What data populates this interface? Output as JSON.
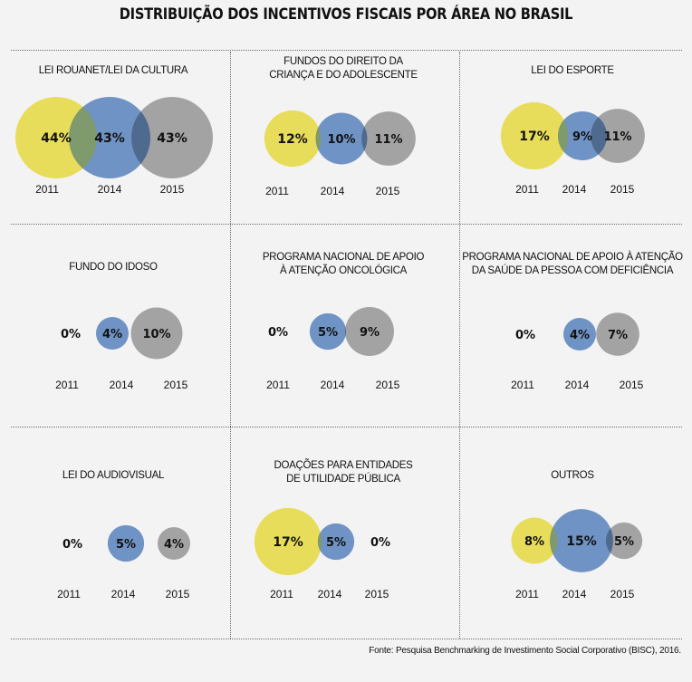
{
  "title": "DISTRIBUIÇÃO DOS INCENTIVOS FISCAIS POR ÁREA NO BRASIL",
  "source": "Fonte: Pesquisa Benchmarking de Investimento Social Corporativo (BISC), 2016.",
  "colors": {
    "2011": "#e8dd5a",
    "2014": "#6f93c4",
    "2015": "#a3a3a3",
    "overlap_yellow_blue": "#7f9a6c",
    "overlap_blue_gray": "#4e6a8e"
  },
  "years": [
    "2011",
    "2014",
    "2015"
  ],
  "chart_data": [
    {
      "type": "bubble",
      "title": "LEI ROUANET/LEI DA CULTURA",
      "labels": [
        "44%",
        "43%",
        "43%"
      ],
      "values": [
        44,
        43,
        43
      ]
    },
    {
      "type": "bubble",
      "title": "FUNDOS DO DIREITO DA\nCRIANÇA E DO ADOLESCENTE",
      "labels": [
        "12%",
        "10%",
        "11%"
      ],
      "values": [
        12,
        10,
        11
      ]
    },
    {
      "type": "bubble",
      "title": "LEI DO ESPORTE",
      "labels": [
        "17%",
        "9%",
        "11%"
      ],
      "values": [
        17,
        9,
        11
      ]
    },
    {
      "type": "bubble",
      "title": "FUNDO DO IDOSO",
      "labels": [
        "0%",
        "4%",
        "10%"
      ],
      "values": [
        0,
        4,
        10
      ]
    },
    {
      "type": "bubble",
      "title": "PROGRAMA NACIONAL DE APOIO\nÀ ATENÇÃO ONCOLÓGICA",
      "labels": [
        "0%",
        "5%",
        "9%"
      ],
      "values": [
        0,
        5,
        9
      ]
    },
    {
      "type": "bubble",
      "title": "PROGRAMA NACIONAL DE APOIO À ATENÇÃO\nDA SAÚDE DA PESSOA COM DEFICIÊNCIA",
      "labels": [
        "0%",
        "4%",
        "7%"
      ],
      "values": [
        0,
        4,
        7
      ]
    },
    {
      "type": "bubble",
      "title": "LEI DO AUDIOVISUAL",
      "labels": [
        "0%",
        "5%",
        "4%"
      ],
      "values": [
        0,
        5,
        4
      ]
    },
    {
      "type": "bubble",
      "title": "DOAÇÕES PARA ENTIDADES\nDE UTILIDADE PÚBLICA",
      "labels": [
        "17%",
        "5%",
        "0%"
      ],
      "values": [
        17,
        5,
        0
      ]
    },
    {
      "type": "bubble",
      "title": "OUTROS",
      "labels": [
        "8%",
        "15%",
        "5%"
      ],
      "values": [
        8,
        15,
        5
      ]
    }
  ]
}
